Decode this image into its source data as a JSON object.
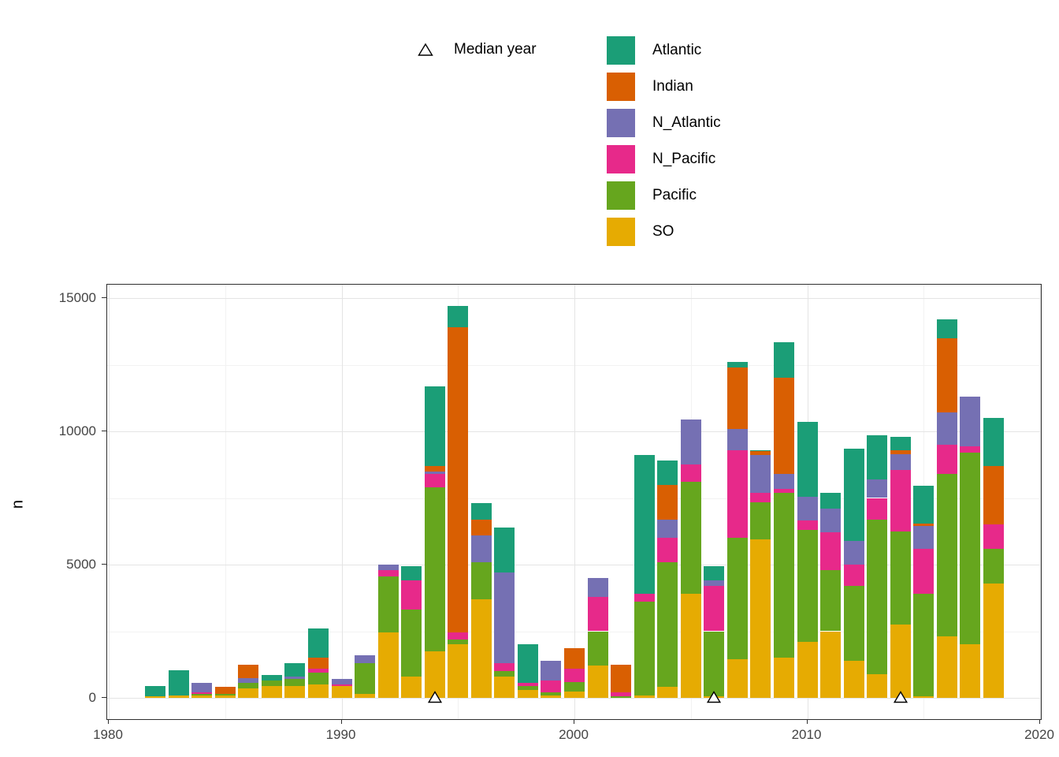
{
  "legend": {
    "median_label": "Median year"
  },
  "chart_data": {
    "type": "bar",
    "stacked": true,
    "title": "",
    "xlabel": "",
    "ylabel": "n",
    "xlim": [
      1980,
      2020
    ],
    "ylim": [
      0,
      15000
    ],
    "x_ticks": [
      1980,
      1990,
      2000,
      2010,
      2020
    ],
    "y_ticks": [
      0,
      5000,
      10000,
      15000
    ],
    "grid": true,
    "legend_position": "top",
    "median_year_markers": [
      1994,
      2006,
      2014
    ],
    "stack_order_bottom_to_top": [
      "SO",
      "Pacific",
      "N_Pacific",
      "N_Atlantic",
      "Indian",
      "Atlantic"
    ],
    "categories": [
      1982,
      1983,
      1984,
      1985,
      1986,
      1987,
      1988,
      1989,
      1990,
      1991,
      1992,
      1993,
      1994,
      1995,
      1996,
      1997,
      1998,
      1999,
      2000,
      2001,
      2002,
      2003,
      2004,
      2005,
      2006,
      2007,
      2008,
      2009,
      2010,
      2011,
      2012,
      2013,
      2014,
      2015,
      2016,
      2017,
      2018
    ],
    "series": [
      {
        "name": "Atlantic",
        "color": "#1B9E77",
        "values": [
          400,
          950,
          0,
          0,
          0,
          200,
          500,
          1100,
          0,
          0,
          0,
          550,
          3000,
          800,
          600,
          1700,
          1450,
          0,
          0,
          0,
          0,
          5200,
          900,
          0,
          550,
          200,
          50,
          1350,
          2800,
          600,
          3450,
          1650,
          500,
          1400,
          700,
          0,
          1800
        ]
      },
      {
        "name": "Indian",
        "color": "#D95F02",
        "values": [
          0,
          0,
          0,
          250,
          500,
          0,
          0,
          400,
          0,
          0,
          0,
          0,
          200,
          11450,
          600,
          0,
          0,
          0,
          750,
          0,
          1050,
          0,
          1300,
          0,
          0,
          2300,
          150,
          3600,
          0,
          0,
          0,
          0,
          150,
          100,
          2800,
          0,
          2200
        ]
      },
      {
        "name": "N_Atlantic",
        "color": "#7570B3",
        "values": [
          0,
          0,
          350,
          0,
          200,
          0,
          100,
          0,
          200,
          300,
          200,
          0,
          100,
          0,
          1000,
          3400,
          0,
          750,
          0,
          700,
          0,
          0,
          700,
          1700,
          200,
          800,
          1400,
          550,
          900,
          900,
          900,
          700,
          600,
          850,
          1200,
          1850,
          0
        ]
      },
      {
        "name": "N_Pacific",
        "color": "#E7298A",
        "values": [
          0,
          0,
          50,
          0,
          0,
          0,
          0,
          150,
          50,
          0,
          250,
          1100,
          500,
          250,
          0,
          300,
          100,
          450,
          500,
          1300,
          150,
          300,
          900,
          650,
          1700,
          3300,
          350,
          150,
          350,
          1400,
          800,
          800,
          2300,
          1700,
          1100,
          250,
          900
        ]
      },
      {
        "name": "Pacific",
        "color": "#66A61E",
        "values": [
          0,
          0,
          50,
          50,
          200,
          200,
          250,
          450,
          0,
          1150,
          2100,
          2500,
          6150,
          200,
          1400,
          200,
          150,
          100,
          350,
          1300,
          50,
          3500,
          4700,
          4200,
          2450,
          4550,
          1400,
          6200,
          4200,
          2300,
          2800,
          5800,
          3500,
          3850,
          6100,
          7200,
          1300
        ]
      },
      {
        "name": "SO",
        "color": "#E6AB02",
        "values": [
          50,
          100,
          100,
          100,
          350,
          450,
          450,
          500,
          450,
          150,
          2450,
          800,
          1750,
          2000,
          3700,
          800,
          300,
          100,
          250,
          1200,
          0,
          100,
          400,
          3900,
          50,
          1450,
          5950,
          1500,
          2100,
          2500,
          1400,
          900,
          2750,
          50,
          2300,
          2000,
          4300
        ]
      }
    ]
  }
}
